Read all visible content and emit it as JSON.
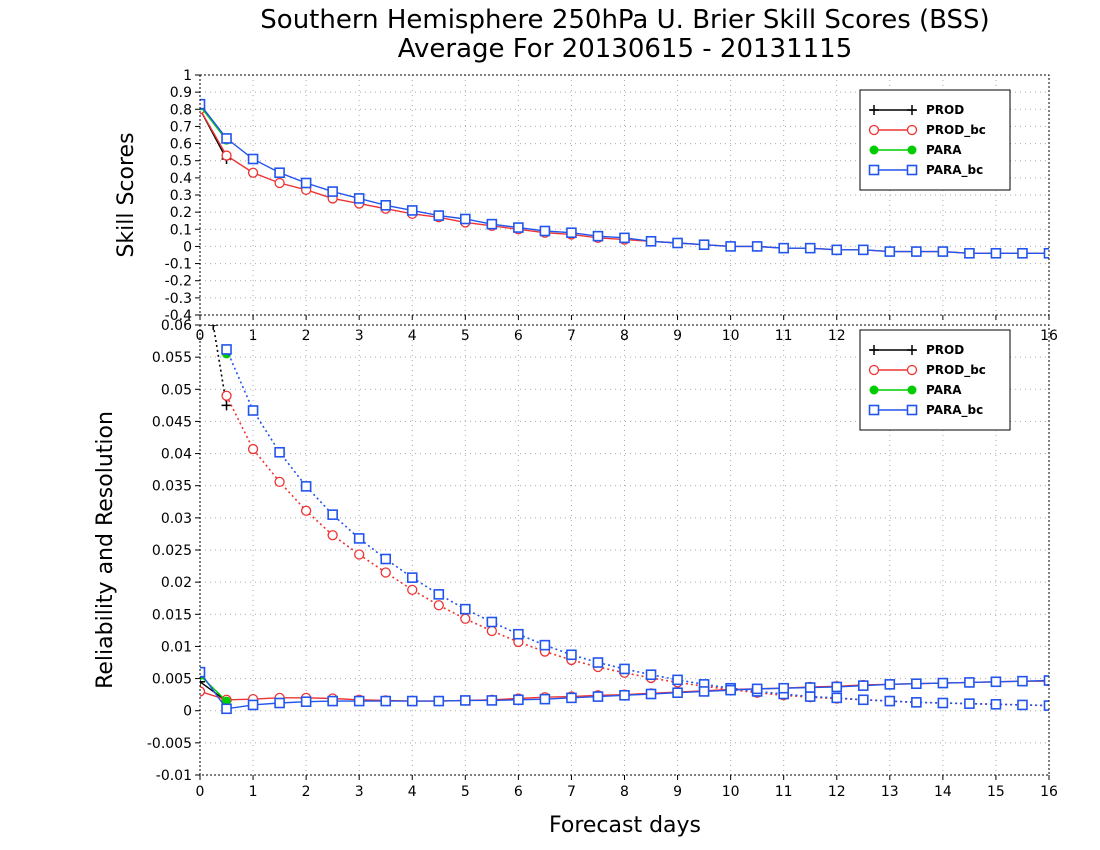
{
  "title_line1": "Southern Hemisphere 250hPa U. Brier Skill Scores (BSS)",
  "title_line2": "Average For 20130615 - 20131115",
  "colors": {
    "PROD": "#000000",
    "PROD_bc": "#ee3333",
    "PARA": "#00cc00",
    "PARA_bc": "#2255ee"
  },
  "chart_data": [
    {
      "type": "line",
      "ylabel": "Skill Scores",
      "xlabel": "",
      "xlim": [
        0,
        16
      ],
      "ylim": [
        -0.4,
        1
      ],
      "x_ticks": [
        "0",
        "1",
        "2",
        "3",
        "4",
        "5",
        "6",
        "7",
        "8",
        "9",
        "10",
        "11",
        "12",
        "13",
        "14",
        "15",
        "16"
      ],
      "y_ticks": [
        "-0.4",
        "-0.3",
        "-0.2",
        "-0.1",
        "0",
        "0.1",
        "0.2",
        "0.3",
        "0.4",
        "0.5",
        "0.6",
        "0.7",
        "0.8",
        "0.9",
        "1"
      ],
      "grid": true,
      "legend_position": "top-right",
      "legend": [
        "PROD",
        "PROD_bc",
        "PARA",
        "PARA_bc"
      ],
      "series": [
        {
          "name": "PROD",
          "marker": "plus",
          "x": [
            0,
            0.5
          ],
          "values": [
            0.8,
            0.51
          ]
        },
        {
          "name": "PROD_bc",
          "marker": "circle",
          "x": [
            0,
            0.5,
            1,
            1.5,
            2,
            2.5,
            3,
            3.5,
            4,
            4.5,
            5,
            5.5,
            6,
            6.5,
            7,
            7.5,
            8,
            8.5,
            9,
            9.5,
            10,
            10.5,
            11,
            11.5,
            12,
            12.5,
            13,
            13.5,
            14,
            14.5,
            15,
            15.5,
            16
          ],
          "values": [
            0.8,
            0.53,
            0.43,
            0.37,
            0.33,
            0.28,
            0.25,
            0.22,
            0.19,
            0.17,
            0.14,
            0.12,
            0.1,
            0.08,
            0.07,
            0.05,
            0.04,
            0.03,
            0.02,
            0.01,
            0.0,
            0.0,
            -0.01,
            -0.01,
            -0.02,
            -0.02,
            -0.03,
            -0.03,
            -0.03,
            -0.04,
            -0.04,
            -0.04,
            -0.04
          ]
        },
        {
          "name": "PARA",
          "marker": "dot",
          "x": [
            0,
            0.5
          ],
          "values": [
            0.82,
            0.62
          ]
        },
        {
          "name": "PARA_bc",
          "marker": "square",
          "x": [
            0,
            0.5,
            1,
            1.5,
            2,
            2.5,
            3,
            3.5,
            4,
            4.5,
            5,
            5.5,
            6,
            6.5,
            7,
            7.5,
            8,
            8.5,
            9,
            9.5,
            10,
            10.5,
            11,
            11.5,
            12,
            12.5,
            13,
            13.5,
            14,
            14.5,
            15,
            15.5,
            16
          ],
          "values": [
            0.83,
            0.63,
            0.51,
            0.43,
            0.37,
            0.32,
            0.28,
            0.24,
            0.21,
            0.18,
            0.16,
            0.13,
            0.11,
            0.09,
            0.08,
            0.06,
            0.05,
            0.03,
            0.02,
            0.01,
            0.0,
            0.0,
            -0.01,
            -0.01,
            -0.02,
            -0.02,
            -0.03,
            -0.03,
            -0.03,
            -0.04,
            -0.04,
            -0.04,
            -0.04
          ]
        }
      ]
    },
    {
      "type": "line",
      "ylabel": "Reliability and Resolution",
      "xlabel": "Forecast days",
      "xlim": [
        0,
        16
      ],
      "ylim": [
        -0.01,
        0.06
      ],
      "x_ticks": [
        "0",
        "1",
        "2",
        "3",
        "4",
        "5",
        "6",
        "7",
        "8",
        "9",
        "10",
        "11",
        "12",
        "13",
        "14",
        "15",
        "16"
      ],
      "y_ticks": [
        "-0.01",
        "-0.005",
        "0",
        "0.005",
        "0.01",
        "0.015",
        "0.02",
        "0.025",
        "0.03",
        "0.035",
        "0.04",
        "0.045",
        "0.05",
        "0.055",
        "0.06"
      ],
      "grid": true,
      "legend_position": "top-right",
      "legend": [
        "PROD",
        "PROD_bc",
        "PARA",
        "PARA_bc"
      ],
      "series": [
        {
          "name": "PROD",
          "role": "resolution",
          "marker": "plus",
          "x": [
            0,
            0.25,
            0.5
          ],
          "values": [
            0.065,
            0.06,
            0.0475
          ]
        },
        {
          "name": "PROD",
          "role": "reliability",
          "marker": "plus",
          "x": [
            0,
            0.5
          ],
          "values": [
            0.0045,
            0.0015
          ]
        },
        {
          "name": "PROD_bc",
          "role": "resolution",
          "marker": "circle",
          "x": [
            0.5,
            1,
            1.5,
            2,
            2.5,
            3,
            3.5,
            4,
            4.5,
            5,
            5.5,
            6,
            6.5,
            7,
            7.5,
            8,
            8.5,
            9,
            9.5,
            10,
            10.5,
            11,
            11.5,
            12,
            12.5,
            13,
            13.5,
            14,
            14.5,
            15,
            15.5,
            16
          ],
          "values": [
            0.049,
            0.0407,
            0.0356,
            0.0311,
            0.0273,
            0.0243,
            0.0215,
            0.0188,
            0.0164,
            0.0143,
            0.0124,
            0.0107,
            0.0092,
            0.0079,
            0.0068,
            0.0059,
            0.0051,
            0.0044,
            0.0038,
            0.0033,
            0.0028,
            0.0024,
            0.0021,
            0.0019,
            0.0017,
            0.0015,
            0.0013,
            0.0012,
            0.0011,
            0.001,
            0.0009,
            0.0008
          ]
        },
        {
          "name": "PROD_bc",
          "role": "reliability",
          "marker": "circle",
          "x": [
            0,
            0.5,
            1,
            1.5,
            2,
            2.5,
            3,
            3.5,
            4,
            4.5,
            5,
            5.5,
            6,
            6.5,
            7,
            7.5,
            8,
            8.5,
            9,
            9.5,
            10,
            10.5,
            11,
            11.5,
            12,
            12.5,
            13,
            13.5,
            14,
            14.5,
            15,
            15.5,
            16
          ],
          "values": [
            0.003,
            0.0017,
            0.0018,
            0.002,
            0.002,
            0.0019,
            0.0017,
            0.0016,
            0.0015,
            0.0015,
            0.0016,
            0.0017,
            0.0019,
            0.0021,
            0.0022,
            0.0024,
            0.0025,
            0.0027,
            0.0029,
            0.0031,
            0.0033,
            0.0034,
            0.0035,
            0.0037,
            0.0038,
            0.004,
            0.0041,
            0.0042,
            0.0043,
            0.0044,
            0.0045,
            0.0046,
            0.0046
          ]
        },
        {
          "name": "PARA",
          "role": "resolution",
          "marker": "dot",
          "x": [
            0.5
          ],
          "values": [
            0.0555
          ]
        },
        {
          "name": "PARA",
          "role": "reliability",
          "marker": "dot",
          "x": [
            0,
            0.5
          ],
          "values": [
            0.0055,
            0.0015
          ]
        },
        {
          "name": "PARA_bc",
          "role": "resolution",
          "marker": "square",
          "x": [
            0.5,
            1,
            1.5,
            2,
            2.5,
            3,
            3.5,
            4,
            4.5,
            5,
            5.5,
            6,
            6.5,
            7,
            7.5,
            8,
            8.5,
            9,
            9.5,
            10,
            10.5,
            11,
            11.5,
            12,
            12.5,
            13,
            13.5,
            14,
            14.5,
            15,
            15.5,
            16
          ],
          "values": [
            0.0562,
            0.0467,
            0.0402,
            0.0349,
            0.0305,
            0.0268,
            0.0236,
            0.0207,
            0.0181,
            0.0158,
            0.0138,
            0.0119,
            0.0102,
            0.0087,
            0.0075,
            0.0065,
            0.0056,
            0.0048,
            0.0041,
            0.0035,
            0.003,
            0.0026,
            0.0022,
            0.002,
            0.0017,
            0.0015,
            0.0013,
            0.0012,
            0.0011,
            0.001,
            0.0009,
            0.0008
          ]
        },
        {
          "name": "PARA_bc",
          "role": "reliability",
          "marker": "square",
          "x": [
            0,
            0.5,
            1,
            1.5,
            2,
            2.5,
            3,
            3.5,
            4,
            4.5,
            5,
            5.5,
            6,
            6.5,
            7,
            7.5,
            8,
            8.5,
            9,
            9.5,
            10,
            10.5,
            11,
            11.5,
            12,
            12.5,
            13,
            13.5,
            14,
            14.5,
            15,
            15.5,
            16
          ],
          "values": [
            0.006,
            0.0003,
            0.0009,
            0.0012,
            0.0014,
            0.0015,
            0.0015,
            0.0015,
            0.0015,
            0.0015,
            0.0016,
            0.0016,
            0.0017,
            0.0018,
            0.002,
            0.0022,
            0.0024,
            0.0026,
            0.0028,
            0.003,
            0.0032,
            0.0034,
            0.0035,
            0.0036,
            0.0037,
            0.0039,
            0.0041,
            0.0042,
            0.0043,
            0.0044,
            0.0045,
            0.0046,
            0.0047
          ]
        }
      ]
    }
  ]
}
